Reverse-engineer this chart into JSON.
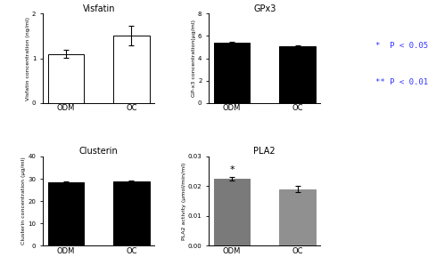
{
  "visfatin": {
    "title": "Visfatin",
    "ylabel": "Visfatin concentration (ng/ml)",
    "categories": [
      "ODM",
      "OC"
    ],
    "values": [
      1.1,
      1.5
    ],
    "errors": [
      0.08,
      0.22
    ],
    "bar_colors": [
      "white",
      "white"
    ],
    "bar_edgecolors": [
      "black",
      "black"
    ],
    "ylim": [
      0,
      2
    ],
    "yticks": [
      0,
      1,
      2
    ],
    "significance": []
  },
  "gpx3": {
    "title": "GPx3",
    "ylabel": "GP-x3 concentration(μg/ml)",
    "categories": [
      "ODM",
      "OC"
    ],
    "values": [
      5.4,
      5.1
    ],
    "errors": [
      0.1,
      0.07
    ],
    "bar_colors": [
      "black",
      "black"
    ],
    "bar_edgecolors": [
      "black",
      "black"
    ],
    "ylim": [
      0,
      8
    ],
    "yticks": [
      0,
      2,
      4,
      6,
      8
    ],
    "significance": []
  },
  "clusterin": {
    "title": "Clusterin",
    "ylabel": "Clusterin concentration (μg/ml)",
    "categories": [
      "ODM",
      "OC"
    ],
    "values": [
      28.5,
      29.0
    ],
    "errors": [
      0.4,
      0.25
    ],
    "bar_colors": [
      "black",
      "black"
    ],
    "bar_edgecolors": [
      "black",
      "black"
    ],
    "ylim": [
      0,
      40
    ],
    "yticks": [
      0,
      10,
      20,
      30,
      40
    ],
    "significance": []
  },
  "pla2": {
    "title": "PLA2",
    "ylabel": "PLA2 activity (μmol/min/ml)",
    "categories": [
      "ODM",
      "OC"
    ],
    "values": [
      0.0225,
      0.019
    ],
    "errors": [
      0.0007,
      0.001
    ],
    "bar_colors": [
      "#7a7a7a",
      "#909090"
    ],
    "bar_edgecolors": [
      "#7a7a7a",
      "#909090"
    ],
    "ylim": [
      0.0,
      0.03
    ],
    "yticks": [
      0.0,
      0.01,
      0.02,
      0.03
    ],
    "significance": [
      "ODM"
    ]
  },
  "legend_star1": "*  P < 0.05",
  "legend_star2": "** P < 0.01",
  "legend_color": "#3333ff"
}
